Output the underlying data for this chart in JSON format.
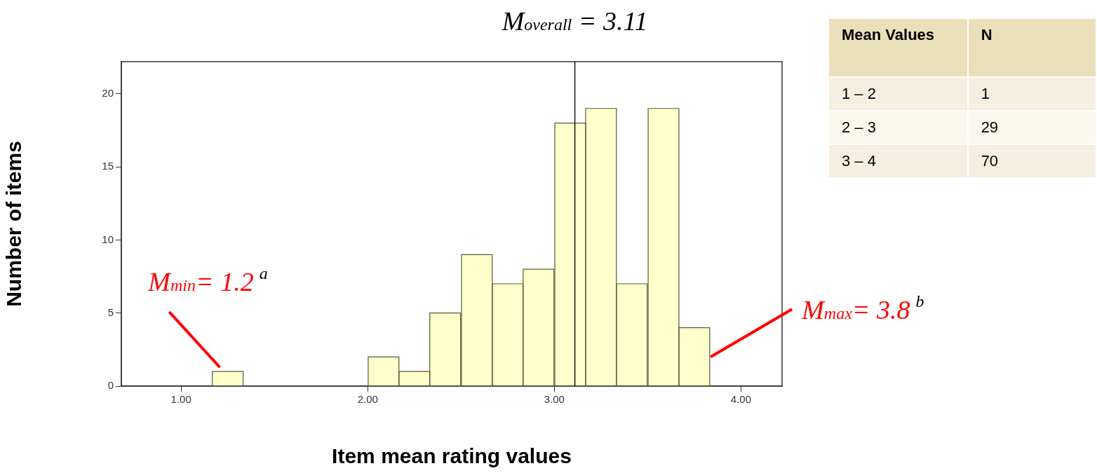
{
  "chart_data": [
    {
      "type": "histogram",
      "xlabel": "Item mean rating values",
      "ylabel": "Number of items",
      "bins": [
        1.17,
        1.33,
        1.5,
        1.67,
        1.83,
        2.0,
        2.17,
        2.33,
        2.5,
        2.67,
        2.83,
        3.0,
        3.17,
        3.33,
        3.5,
        3.67,
        3.83
      ],
      "values": [
        1,
        0,
        0,
        0,
        0,
        2,
        1,
        5,
        9,
        7,
        8,
        18,
        19,
        7,
        19,
        4
      ],
      "color": "#ffffcc",
      "xlim": [
        0.68,
        4.22
      ],
      "xticks": [
        {
          "value": 1,
          "label": "1.00"
        },
        {
          "value": 2,
          "label": "2.00"
        },
        {
          "value": 3,
          "label": "3.00"
        },
        {
          "value": 4,
          "label": "4.00"
        }
      ],
      "ylim": [
        0,
        22.2
      ],
      "yticks": [
        0,
        5,
        10,
        15,
        20
      ],
      "grid": false,
      "legend": false,
      "ref_lines": [
        {
          "axis": "x",
          "value": 3.11,
          "label": "M$_{overall}$ = 3.11",
          "color": "#000000"
        }
      ],
      "annotations": [
        {
          "text": "M$_{min}$= 1.2$^{a}$",
          "x": 1.2,
          "y": 1
        },
        {
          "text": "M$_{max}$= 3.8$^{b}$",
          "x": 3.83,
          "y": 2
        }
      ]
    },
    {
      "type": "other",
      "xlabel": "Mean Values",
      "ylabel": "N",
      "categories": [
        "1 – 2",
        "2 – 3",
        "3 – 4"
      ],
      "values": [
        1,
        29,
        70
      ],
      "data_labels": true
    }
  ]
}
